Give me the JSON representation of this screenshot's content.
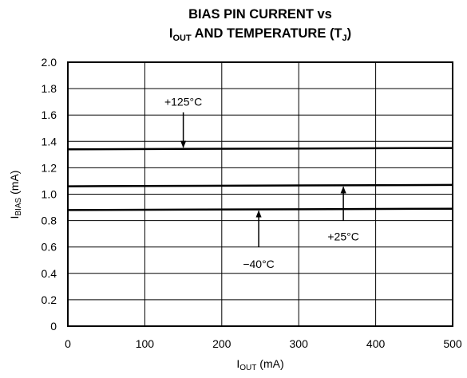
{
  "chart_data": {
    "type": "line",
    "title_line1": "BIAS PIN CURRENT vs",
    "title_line2_main": "I",
    "title_line2_sub": "OUT",
    "title_line2_mid": " AND TEMPERATURE (T",
    "title_line2_sub2": "J",
    "title_line2_end": ")",
    "xlabel_main": "I",
    "xlabel_sub": "OUT",
    "xlabel_unit": " (mA)",
    "ylabel_main": "I",
    "ylabel_sub": "BIAS",
    "ylabel_unit": " (mA)",
    "xlim": [
      0,
      500
    ],
    "ylim": [
      0,
      2.0
    ],
    "xticks": [
      "0",
      "100",
      "200",
      "300",
      "400",
      "500"
    ],
    "yticks": [
      "0",
      "0.2",
      "0.4",
      "0.6",
      "0.8",
      "1.0",
      "1.2",
      "1.4",
      "1.6",
      "1.8",
      "2.0"
    ],
    "grid": true,
    "series": [
      {
        "name": "+125°C",
        "x": [
          0,
          500
        ],
        "y": [
          1.34,
          1.35
        ]
      },
      {
        "name": "+25°C",
        "x": [
          0,
          500
        ],
        "y": [
          1.06,
          1.07
        ]
      },
      {
        "name": "−40°C",
        "x": [
          0,
          500
        ],
        "y": [
          0.88,
          0.89
        ]
      }
    ],
    "annotations": [
      {
        "text": "+125°C",
        "series": 0,
        "x": 150,
        "label_y": 1.7,
        "arrow_from_y": 1.62
      },
      {
        "text": "+25°C",
        "series": 1,
        "x": 358,
        "label_y": 0.68,
        "arrow_from_y": 0.8
      },
      {
        "text": "−40°C",
        "series": 2,
        "x": 248,
        "label_y": 0.47,
        "arrow_from_y": 0.6
      }
    ]
  }
}
